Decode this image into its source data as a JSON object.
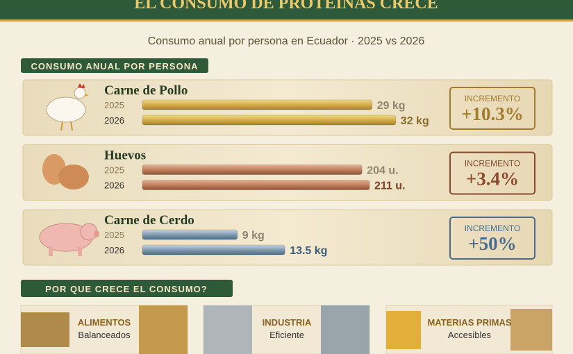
{
  "header": {
    "title": "EL CONSUMO DE PROTEÍNAS CRECE",
    "subtitle": "Consumo anual por persona en Ecuador · 2025 vs 2026"
  },
  "section_1": "CONSUMO ANUAL POR PERSONA",
  "items": [
    {
      "name": "Carne de Pollo",
      "years": [
        "2025",
        "2026"
      ],
      "values": [
        29,
        32
      ],
      "value_labels": [
        "29 kg",
        "32 kg"
      ],
      "increment_label": "INCREMENTO",
      "increment": "+10.3%"
    },
    {
      "name": "Huevos",
      "years": [
        "2025",
        "2026"
      ],
      "values": [
        204,
        211
      ],
      "value_labels": [
        "204 u.",
        "211 u."
      ],
      "increment_label": "INCREMENTO",
      "increment": "+3.4%"
    },
    {
      "name": "Carne de Cerdo",
      "years": [
        "2025",
        "2026"
      ],
      "values": [
        9,
        13.5
      ],
      "value_labels": [
        "9 kg",
        "13.5 kg"
      ],
      "increment_label": "INCREMENTO",
      "increment": "+50%"
    }
  ],
  "section_2": "POR QUE CRECE EL CONSUMO?",
  "reasons": [
    {
      "title": "ALIMENTOS",
      "subtitle": "Balanceados"
    },
    {
      "title": "INDUSTRIA",
      "subtitle": "Eficiente"
    },
    {
      "title": "MATERIAS PRIMAS",
      "subtitle": "Accesibles"
    }
  ]
}
